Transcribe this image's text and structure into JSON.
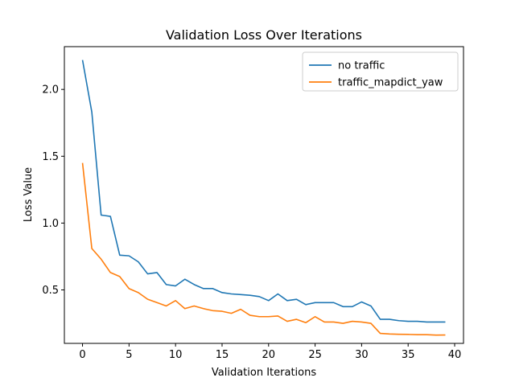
{
  "chart_data": {
    "type": "line",
    "title": "Validation Loss Over Iterations",
    "xlabel": "Validation Iterations",
    "ylabel": "Loss Value",
    "xlim": [
      -1.95,
      40.95
    ],
    "ylim": [
      0.1,
      2.32
    ],
    "xticks": [
      0,
      5,
      10,
      15,
      20,
      25,
      30,
      35,
      40
    ],
    "yticks": [
      0.5,
      1.0,
      1.5,
      2.0
    ],
    "ytick_labels": [
      "0.5",
      "1.0",
      "1.5",
      "2.0"
    ],
    "grid": false,
    "legend_position": "top-right",
    "x": [
      0,
      1,
      2,
      3,
      4,
      5,
      6,
      7,
      8,
      9,
      10,
      11,
      12,
      13,
      14,
      15,
      16,
      17,
      18,
      19,
      20,
      21,
      22,
      23,
      24,
      25,
      26,
      27,
      28,
      29,
      30,
      31,
      32,
      33,
      34,
      35,
      36,
      37,
      38,
      39
    ],
    "series": [
      {
        "name": "no traffic",
        "color": "#1f77b4",
        "values": [
          2.22,
          1.83,
          1.06,
          1.05,
          0.76,
          0.755,
          0.71,
          0.62,
          0.63,
          0.54,
          0.53,
          0.58,
          0.54,
          0.51,
          0.51,
          0.48,
          0.47,
          0.465,
          0.46,
          0.45,
          0.42,
          0.47,
          0.42,
          0.43,
          0.39,
          0.405,
          0.405,
          0.405,
          0.375,
          0.375,
          0.41,
          0.38,
          0.28,
          0.28,
          0.27,
          0.265,
          0.265,
          0.26,
          0.26,
          0.26
        ]
      },
      {
        "name": "traffic_mapdict_yaw",
        "color": "#ff7f0e",
        "values": [
          1.45,
          0.81,
          0.73,
          0.63,
          0.6,
          0.51,
          0.48,
          0.43,
          0.405,
          0.38,
          0.42,
          0.36,
          0.38,
          0.36,
          0.345,
          0.34,
          0.325,
          0.355,
          0.31,
          0.3,
          0.3,
          0.305,
          0.265,
          0.28,
          0.255,
          0.3,
          0.26,
          0.26,
          0.25,
          0.265,
          0.26,
          0.25,
          0.175,
          0.17,
          0.168,
          0.167,
          0.165,
          0.165,
          0.162,
          0.163
        ]
      }
    ]
  }
}
